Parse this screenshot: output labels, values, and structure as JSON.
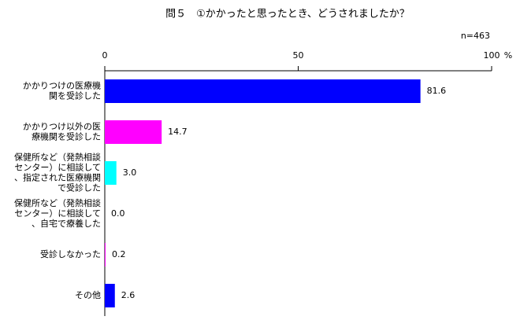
{
  "chart_data": {
    "type": "barh",
    "title": "問５　①かかったと思ったとき、どうされましたか？",
    "subtitle": "n=463",
    "x_unit": "%",
    "categories": [
      [
        "かかりつけの医療機",
        "関を受診した"
      ],
      [
        "かかりつけ以外の医",
        "療機関を受診した"
      ],
      [
        "保健所など（発熱相談",
        "センター）に相談して",
        "、指定された医療機関",
        "で受診した"
      ],
      [
        "保健所など（発熱相談",
        "センター）に相談して",
        "、自宅で療養した"
      ],
      [
        "受診しなかった"
      ],
      [
        "その他"
      ]
    ],
    "values": [
      81.6,
      14.7,
      3.0,
      0.0,
      0.2,
      2.6
    ],
    "value_labels": [
      "81.6",
      "14.7",
      "3.0",
      "0.0",
      "0.2",
      "2.6"
    ],
    "colors": [
      "#0000ff",
      "#ff00ff",
      "#00ffff",
      "#00ffff",
      "#ff00ff",
      "#0000ff"
    ],
    "xlim": [
      0,
      100
    ],
    "xticks": [
      0,
      50,
      100
    ]
  }
}
